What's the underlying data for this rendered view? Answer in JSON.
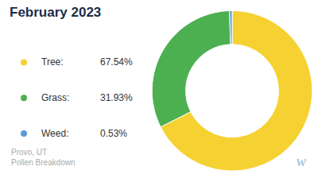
{
  "chart_data": {
    "type": "pie",
    "title": "February 2023",
    "categories": [
      "Tree:",
      "Grass:",
      "Weed:"
    ],
    "values": [
      67.54,
      31.93,
      0.53
    ],
    "value_labels": [
      "67.54%",
      "31.93%",
      "0.53%"
    ],
    "colors": [
      "#f5d232",
      "#4caf50",
      "#5b9bd5"
    ],
    "legend": "left",
    "annotations": [
      "Provo, UT\nPollen Breakdown",
      "w"
    ]
  }
}
